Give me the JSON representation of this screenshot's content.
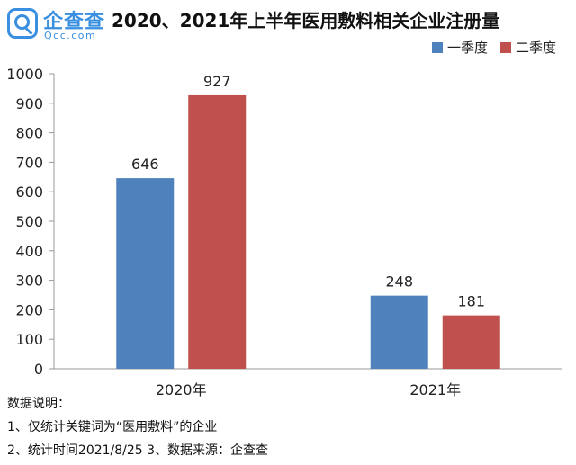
{
  "logo": {
    "name_cn": "企查查",
    "name_en": "Qcc.com",
    "icon": "magnifier-icon"
  },
  "chart_data": {
    "type": "bar",
    "title": "2020、2021年上半年医用敷料相关企业注册量",
    "categories": [
      "2020年",
      "2021年"
    ],
    "series": [
      {
        "name": "一季度",
        "color": "#4f81bd",
        "values": [
          646,
          248
        ]
      },
      {
        "name": "二季度",
        "color": "#c0504d",
        "values": [
          927,
          181
        ]
      }
    ],
    "ylim": [
      0,
      1000
    ],
    "yticks": [
      0,
      100,
      200,
      300,
      400,
      500,
      600,
      700,
      800,
      900,
      1000
    ],
    "xlabel": "",
    "ylabel": "",
    "grid": false,
    "legend": "top-right",
    "data_labels": true
  },
  "notes": {
    "heading": "数据说明：",
    "line1": "1、仅统计关键词为“医用敷料”的企业",
    "line2": "2、统计时间2021/8/25   3、数据来源：企查查"
  }
}
